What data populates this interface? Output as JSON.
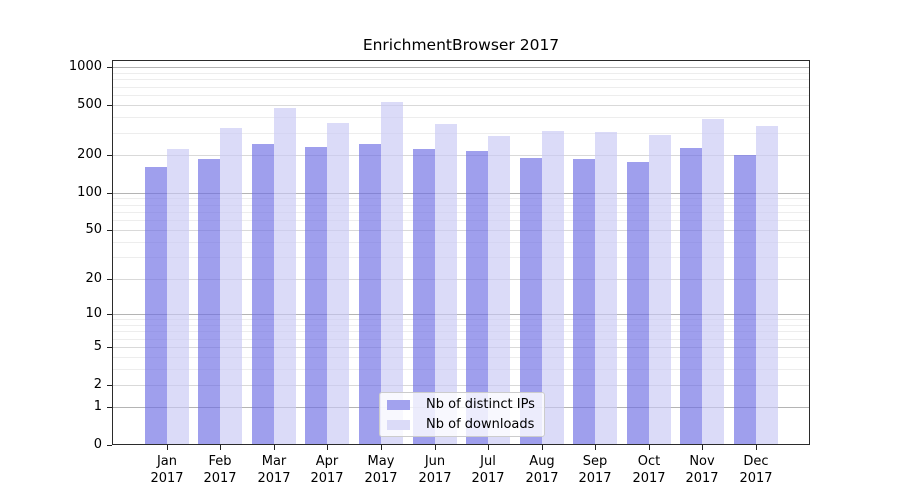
{
  "chart_data": {
    "type": "bar",
    "title": "EnrichmentBrowser 2017",
    "categories": [
      "Jan",
      "Feb",
      "Mar",
      "Apr",
      "May",
      "Jun",
      "Jul",
      "Aug",
      "Sep",
      "Oct",
      "Nov",
      "Dec"
    ],
    "x_year_label": "2017",
    "series": [
      {
        "name": "Nb of distinct IPs",
        "color": "#a2a2ee",
        "fill": "rgba(108,108,228,0.65)",
        "values": [
          160,
          186,
          246,
          232,
          247,
          223,
          214,
          191,
          187,
          176,
          229,
          202
        ]
      },
      {
        "name": "Nb of downloads",
        "color": "#dbdbf8",
        "fill": "rgba(200,200,244,0.65)",
        "values": [
          225,
          330,
          477,
          362,
          531,
          352,
          286,
          311,
          305,
          289,
          388,
          343
        ]
      }
    ],
    "y_axis": {
      "scale": "log10(value+1)",
      "ticks": [
        0,
        1,
        2,
        5,
        10,
        20,
        50,
        100,
        200,
        500,
        1000
      ],
      "decade_ticks": [
        1,
        10,
        100,
        1000
      ],
      "minor_gridlines": [
        3,
        4,
        6,
        7,
        8,
        9,
        30,
        40,
        60,
        70,
        80,
        90,
        300,
        400,
        600,
        700,
        800,
        900
      ],
      "max": 1140
    },
    "grid": true,
    "legend_position": "inside-bottom-center",
    "colors": {
      "grid_decade": "#b4b4b4",
      "grid_major": "#d9d9d9",
      "grid_minor": "#ededed",
      "axis": "#2b2b2b",
      "text": "#000000",
      "background": "#ffffff"
    }
  },
  "legend": {
    "items": [
      {
        "label": "Nb of distinct IPs",
        "color": "#a2a2ee"
      },
      {
        "label": "Nb of downloads",
        "color": "#dbdbf8"
      }
    ]
  }
}
